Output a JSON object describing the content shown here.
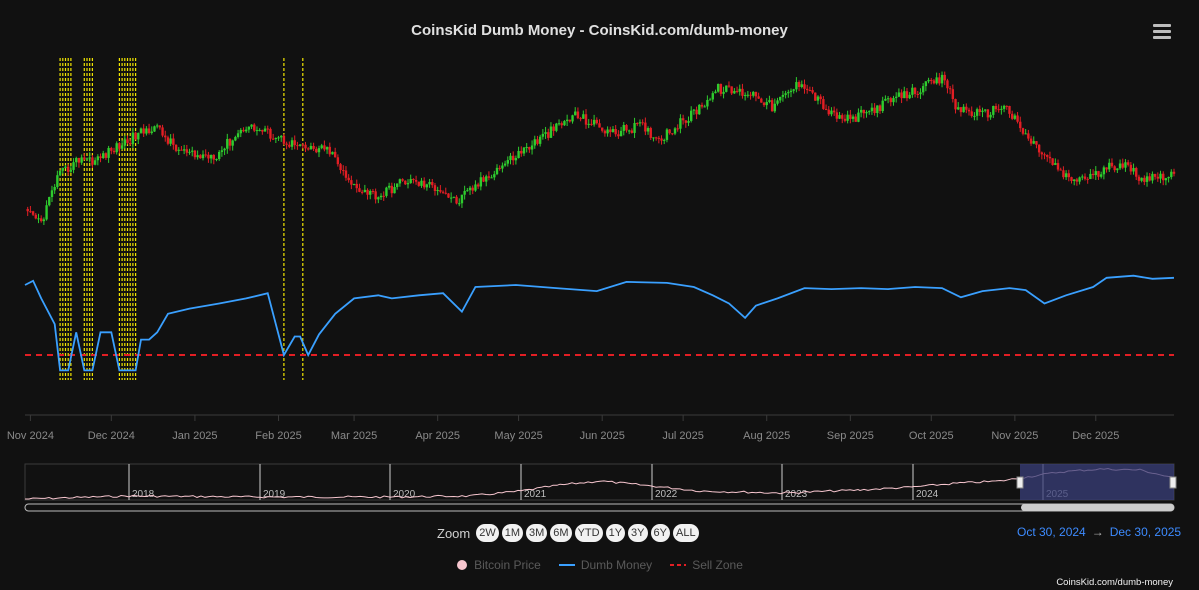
{
  "title": "CoinsKid Dumb Money - CoinsKid.com/dumb-money",
  "menu_icon": "hamburger-menu-icon",
  "zoom": {
    "label": "Zoom",
    "buttons": [
      "2W",
      "1M",
      "3M",
      "6M",
      "YTD",
      "1Y",
      "3Y",
      "6Y",
      "ALL"
    ]
  },
  "range": {
    "from": "Oct 30, 2024",
    "arrow": "→",
    "to": "Dec 30, 2025"
  },
  "legend": [
    {
      "label": "Bitcoin Price",
      "color": "#f7c6cf",
      "symbol": "circle"
    },
    {
      "label": "Dumb Money",
      "color": "#3aa0ff",
      "symbol": "line"
    },
    {
      "label": "Sell Zone",
      "color": "#e31e24",
      "symbol": "dash"
    }
  ],
  "credits": "CoinsKid.com/dumb-money",
  "colors": {
    "background": "#111111",
    "up": "#2ecc2e",
    "down": "#e31e24",
    "signal": "#f2e600",
    "navigator_mask": "#3a3f7a"
  },
  "chart_data": {
    "type": "line",
    "x_range": [
      "2024-10-30",
      "2025-12-30"
    ],
    "x_ticks": [
      "Nov 2024",
      "Dec 2024",
      "Jan 2025",
      "Feb 2025",
      "Mar 2025",
      "Apr 2025",
      "May 2025",
      "Jun 2025",
      "Jul 2025",
      "Aug 2025",
      "Sep 2025",
      "Oct 2025",
      "Nov 2025",
      "Dec 2025"
    ],
    "y_axis_labels": "hidden",
    "grid": false,
    "legend_placement": "bottom-center",
    "sell_zone_level": 0,
    "series": [
      {
        "name": "Bitcoin Price",
        "style": "candlestick",
        "points": [
          [
            "2024-10-30",
            72.5
          ],
          [
            "2024-11-05",
            69
          ],
          [
            "2024-11-11",
            86
          ],
          [
            "2024-11-20",
            94
          ],
          [
            "2024-11-25",
            92.5
          ],
          [
            "2024-12-05",
            99
          ],
          [
            "2024-12-17",
            106
          ],
          [
            "2024-12-25",
            97
          ],
          [
            "2025-01-01",
            94
          ],
          [
            "2025-01-09",
            95
          ],
          [
            "2025-01-20",
            106
          ],
          [
            "2025-01-31",
            102
          ],
          [
            "2025-02-10",
            97
          ],
          [
            "2025-02-20",
            96.5
          ],
          [
            "2025-02-27",
            84
          ],
          [
            "2025-03-10",
            79
          ],
          [
            "2025-03-20",
            85
          ],
          [
            "2025-04-02",
            82
          ],
          [
            "2025-04-08",
            76.5
          ],
          [
            "2025-04-21",
            88
          ],
          [
            "2025-05-02",
            96
          ],
          [
            "2025-05-12",
            103
          ],
          [
            "2025-05-22",
            110
          ],
          [
            "2025-06-05",
            103
          ],
          [
            "2025-06-15",
            106
          ],
          [
            "2025-06-22",
            101
          ],
          [
            "2025-07-03",
            109
          ],
          [
            "2025-07-14",
            120
          ],
          [
            "2025-07-28",
            118
          ],
          [
            "2025-08-03",
            113
          ],
          [
            "2025-08-14",
            123
          ],
          [
            "2025-08-25",
            110
          ],
          [
            "2025-09-01",
            108
          ],
          [
            "2025-09-15",
            115
          ],
          [
            "2025-10-06",
            124
          ],
          [
            "2025-10-10",
            113
          ],
          [
            "2025-10-20",
            110
          ],
          [
            "2025-10-28",
            114
          ],
          [
            "2025-11-05",
            102
          ],
          [
            "2025-11-21",
            85
          ],
          [
            "2025-12-01",
            87
          ],
          [
            "2025-12-10",
            92
          ],
          [
            "2025-12-18",
            86
          ],
          [
            "2025-12-30",
            87.5
          ]
        ]
      },
      {
        "name": "Dumb Money",
        "style": "line",
        "points": [
          [
            "2024-10-30",
            0.68
          ],
          [
            "2024-11-02",
            0.72
          ],
          [
            "2024-11-05",
            0.55
          ],
          [
            "2024-11-10",
            0.3
          ],
          [
            "2024-11-12",
            -0.15
          ],
          [
            "2024-11-15",
            -0.15
          ],
          [
            "2024-11-18",
            0.22
          ],
          [
            "2024-11-21",
            -0.15
          ],
          [
            "2024-11-24",
            -0.15
          ],
          [
            "2024-11-27",
            0.22
          ],
          [
            "2024-12-01",
            0.22
          ],
          [
            "2024-12-04",
            -0.15
          ],
          [
            "2024-12-10",
            -0.15
          ],
          [
            "2024-12-12",
            0.15
          ],
          [
            "2024-12-15",
            0.15
          ],
          [
            "2024-12-18",
            0.22
          ],
          [
            "2024-12-22",
            0.4
          ],
          [
            "2024-12-30",
            0.45
          ],
          [
            "2025-01-10",
            0.5
          ],
          [
            "2025-01-20",
            0.55
          ],
          [
            "2025-01-28",
            0.6
          ],
          [
            "2025-02-03",
            0.0
          ],
          [
            "2025-02-07",
            0.18
          ],
          [
            "2025-02-09",
            0.18
          ],
          [
            "2025-02-12",
            0.0
          ],
          [
            "2025-02-16",
            0.2
          ],
          [
            "2025-02-22",
            0.4
          ],
          [
            "2025-03-01",
            0.55
          ],
          [
            "2025-03-10",
            0.58
          ],
          [
            "2025-03-15",
            0.55
          ],
          [
            "2025-03-25",
            0.58
          ],
          [
            "2025-04-03",
            0.6
          ],
          [
            "2025-04-10",
            0.42
          ],
          [
            "2025-04-15",
            0.66
          ],
          [
            "2025-04-30",
            0.68
          ],
          [
            "2025-05-15",
            0.65
          ],
          [
            "2025-05-30",
            0.62
          ],
          [
            "2025-06-10",
            0.71
          ],
          [
            "2025-06-25",
            0.7
          ],
          [
            "2025-07-05",
            0.66
          ],
          [
            "2025-07-12",
            0.58
          ],
          [
            "2025-07-18",
            0.5
          ],
          [
            "2025-07-24",
            0.36
          ],
          [
            "2025-07-28",
            0.48
          ],
          [
            "2025-08-05",
            0.55
          ],
          [
            "2025-08-15",
            0.65
          ],
          [
            "2025-08-25",
            0.64
          ],
          [
            "2025-09-05",
            0.65
          ],
          [
            "2025-09-15",
            0.64
          ],
          [
            "2025-09-25",
            0.66
          ],
          [
            "2025-10-05",
            0.65
          ],
          [
            "2025-10-12",
            0.56
          ],
          [
            "2025-10-20",
            0.62
          ],
          [
            "2025-10-30",
            0.65
          ],
          [
            "2025-11-05",
            0.63
          ],
          [
            "2025-11-12",
            0.5
          ],
          [
            "2025-11-20",
            0.58
          ],
          [
            "2025-11-30",
            0.66
          ],
          [
            "2025-12-05",
            0.75
          ],
          [
            "2025-12-15",
            0.77
          ],
          [
            "2025-12-22",
            0.74
          ],
          [
            "2025-12-30",
            0.75
          ]
        ]
      },
      {
        "name": "Sell Zone",
        "style": "dashed-line",
        "value": 0
      }
    ],
    "signal_markers": [
      "2024-11-12",
      "2024-11-13",
      "2024-11-14",
      "2024-11-15",
      "2024-11-16",
      "2024-11-21",
      "2024-11-22",
      "2024-11-23",
      "2024-11-24",
      "2024-12-04",
      "2024-12-05",
      "2024-12-06",
      "2024-12-07",
      "2024-12-08",
      "2024-12-09",
      "2024-12-10",
      "2025-02-03",
      "2025-02-10"
    ],
    "navigator": {
      "years": [
        "2018",
        "2019",
        "2020",
        "2021",
        "2022",
        "2023",
        "2024",
        "2025"
      ],
      "series_color": "#f7c6cf",
      "selected_range": [
        "2024-10-30",
        "2025-12-30"
      ]
    }
  }
}
